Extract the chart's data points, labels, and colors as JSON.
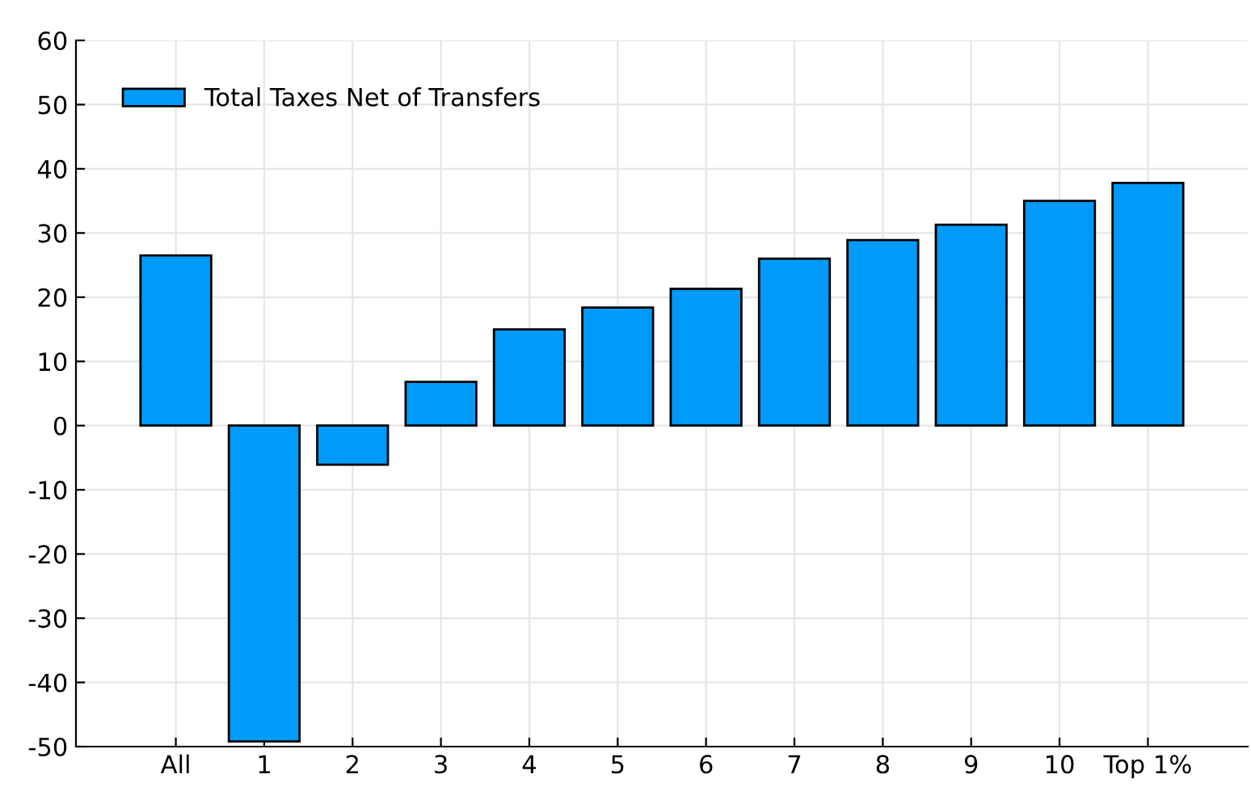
{
  "chart_data": {
    "type": "bar",
    "categories": [
      "All",
      "1",
      "2",
      "3",
      "4",
      "5",
      "6",
      "7",
      "8",
      "9",
      "10",
      "Top 1%"
    ],
    "series": [
      {
        "name": "Total Taxes Net of Transfers",
        "color": "#009af9",
        "values": [
          26.5,
          -49.2,
          -6.1,
          6.8,
          15.0,
          18.4,
          21.3,
          26.0,
          28.9,
          31.3,
          35.0,
          37.8
        ]
      }
    ],
    "ylim": [
      -50,
      60
    ],
    "yticks": [
      -50,
      -40,
      -30,
      -20,
      -10,
      0,
      10,
      20,
      30,
      40,
      50,
      60
    ],
    "grid": true,
    "legend": "top left"
  }
}
